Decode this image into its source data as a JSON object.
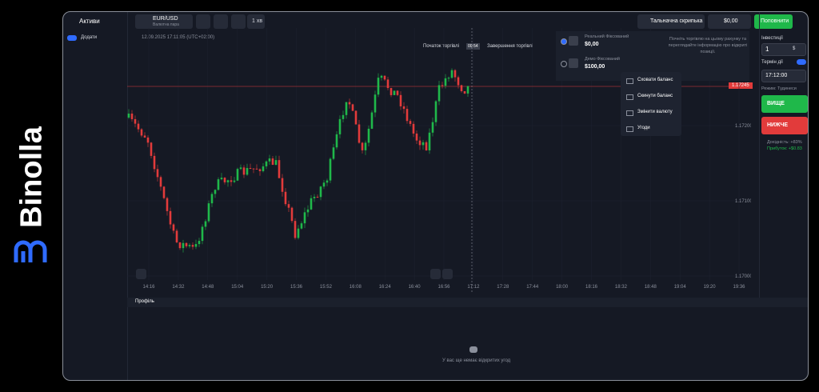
{
  "brand": "Binolla",
  "sidebar": {
    "title": "Активи",
    "add": "Додати"
  },
  "toolbar": {
    "pair": "EUR/USD",
    "pair_type": "Валютна пара",
    "timeframe": "1 хв",
    "tournament": "Тальначна скрипька",
    "balance": "$0,00",
    "deposit": "Поповнити"
  },
  "chart": {
    "datetime": "12.09.2025 17:11:05 (UTC+02:00)",
    "start_label": "Початок торгівлі",
    "timer": "00:54",
    "end_label": "Завершення торгівлі",
    "current_price": "1.17245",
    "price_labels": [
      "1.17200",
      "1.17100",
      "1.17000"
    ],
    "time_labels": [
      "14:16",
      "14:32",
      "14:48",
      "15:04",
      "15:20",
      "15:36",
      "15:52",
      "16:08",
      "16:24",
      "16:40",
      "16:56",
      "17:12",
      "17:28",
      "17:44",
      "18:00",
      "18:16",
      "18:32",
      "18:48",
      "19:04",
      "19:20",
      "19:36"
    ]
  },
  "accounts": {
    "items": [
      {
        "name": "Реальний Фіксований",
        "balance": "$0,00"
      },
      {
        "name": "Демо Фіксований",
        "balance": "$100,00"
      }
    ],
    "hint": "Почніть торгівлю на цьому рахунку та переглядайте інформацію про відкриті позиції."
  },
  "menu": [
    "Сховати баланс",
    "Скинути баланс",
    "Змінити валюту",
    "Угоди"
  ],
  "trade": {
    "investment_label": "Інвестиції",
    "investment": "1",
    "currency": "$",
    "expiry_label": "Термін дії",
    "expiry": "17:12:00",
    "mode": "Режим: Тудинеси",
    "up": "ВИЩЕ",
    "down": "НИЖЧЕ",
    "yield": "Дохідність: +83%",
    "profit": "Прибуток: +$0.83"
  },
  "bottom": {
    "tab": "Профіль",
    "empty": "У вас ще немає відкритих угод"
  }
}
